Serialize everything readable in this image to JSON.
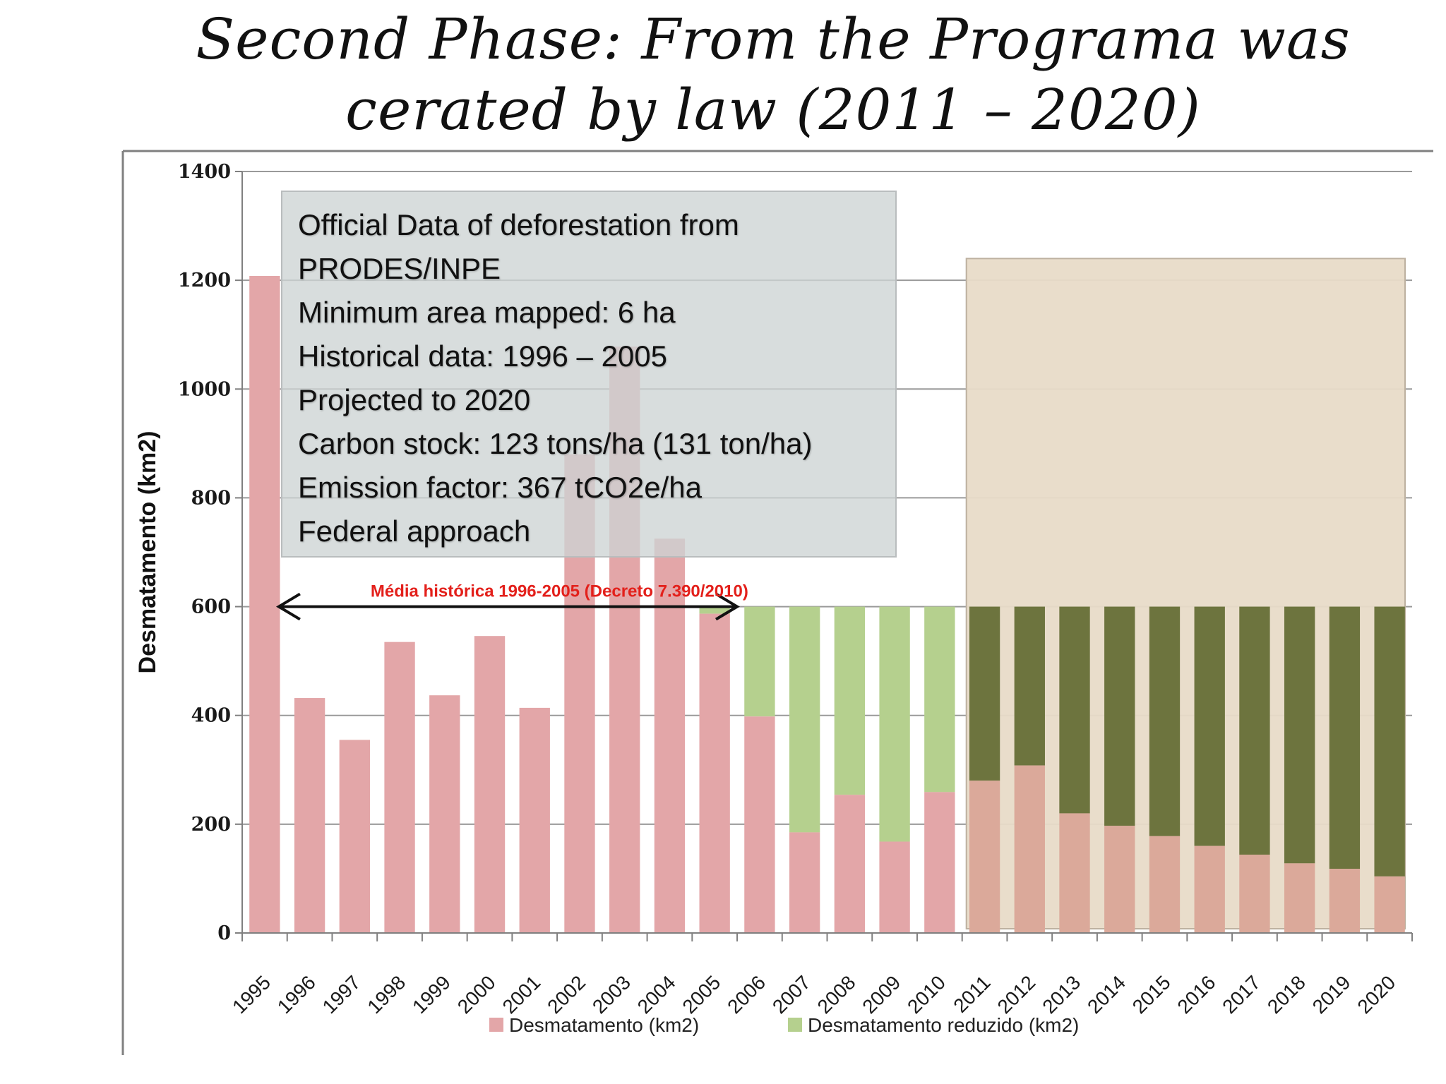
{
  "slide_title": "Second Phase: From the Programa was cerated by law (2011 – 2020)",
  "info_box": {
    "lines": [
      "Official Data of deforestation from",
      "PRODES/INPE",
      "Minimum area mapped: 6 ha",
      "Historical data: 1996 – 2005",
      "Projected to 2020",
      "Carbon stock: 123 tons/ha (131 ton/ha)",
      "Emission factor: 367 tCO2e/ha",
      "Federal approach"
    ]
  },
  "chart_data": {
    "type": "bar",
    "stacked": true,
    "categories": [
      "1995",
      "1996",
      "1997",
      "1998",
      "1999",
      "2000",
      "2001",
      "2002",
      "2003",
      "2004",
      "2005",
      "2006",
      "2007",
      "2008",
      "2009",
      "2010",
      "2011",
      "2012",
      "2013",
      "2014",
      "2015",
      "2016",
      "2017",
      "2018",
      "2019",
      "2020"
    ],
    "series": [
      {
        "name": "Desmatamento (km2)",
        "values": [
          1208,
          432,
          355,
          535,
          437,
          546,
          414,
          880,
          1078,
          725,
          587,
          398,
          185,
          254,
          168,
          259,
          280,
          308,
          220,
          197,
          178,
          160,
          144,
          128,
          118,
          104
        ]
      },
      {
        "name": "Desmatamento reduzido (km2)",
        "values": [
          0,
          0,
          0,
          0,
          0,
          0,
          0,
          0,
          0,
          0,
          13,
          202,
          415,
          346,
          432,
          341,
          320,
          292,
          380,
          403,
          422,
          440,
          456,
          472,
          482,
          496
        ]
      }
    ],
    "xlabel": "",
    "ylabel": "Desmatamento (km2)",
    "ylim": [
      0,
      1400
    ],
    "yticks": [
      0,
      200,
      400,
      600,
      800,
      1000,
      1200,
      1400
    ],
    "grid": true,
    "legend": "bottom",
    "projection_shade": {
      "from": "2011",
      "to": "2020",
      "top": 1240
    },
    "annotation": {
      "text": "Média histórica 1996-2005  (Decreto 7.390/2010)",
      "value": 600,
      "from": "1995",
      "to": "2005"
    },
    "colors": {
      "desmatamento": "#e3a6a8",
      "reduzido_historic": "#b5d08e",
      "reduzido_projected": "#6d743e",
      "shade": "#e8dbc8",
      "gridline": "#9a9a9a",
      "annotation": "#e3201b"
    }
  }
}
